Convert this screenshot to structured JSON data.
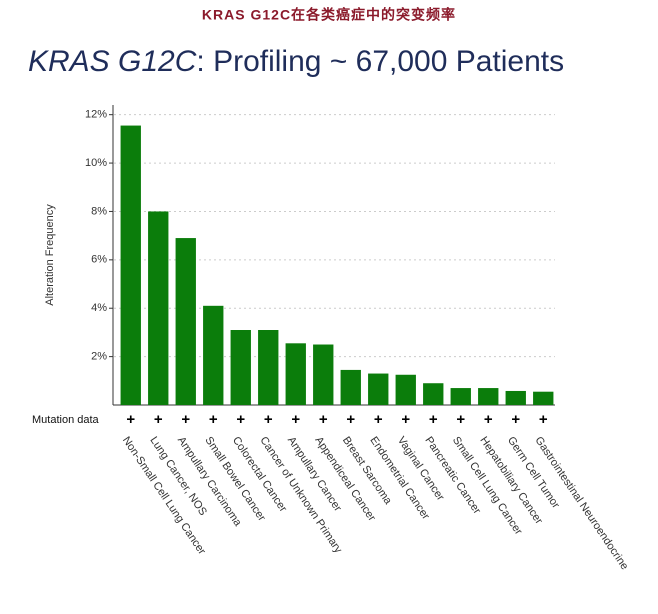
{
  "header": "KRAS G12C在各类癌症中的突变频率",
  "chart_data": {
    "type": "bar",
    "title_italic": "KRAS G12C",
    "title_rest": ": Profiling ~ 67,000 Patients",
    "y_label": "Alteration Frequency",
    "row_label": "Mutation data",
    "row_marker": "+",
    "categories": [
      "Non-Small Cell Lung Cancer",
      "Lung Cancer, NOS",
      "Ampullary Carcinoma",
      "Small Bowel Cancer",
      "Colorectal Cancer",
      "Cancer of Unknown Primary",
      "Ampullary Cancer",
      "Appendiceal Cancer",
      "Breast Sarcoma",
      "Endometrial Cancer",
      "Vaginal Cancer",
      "Pancreatic Cancer",
      "Small Cell Lung Cancer",
      "Hepatobiliary Cancer",
      "Germ Cell Tumor",
      "Gastrointestinal Neuroendocrine"
    ],
    "values": [
      11.55,
      8.0,
      6.9,
      4.1,
      3.1,
      3.1,
      2.55,
      2.5,
      1.45,
      1.3,
      1.25,
      0.9,
      0.7,
      0.7,
      0.58,
      0.55
    ],
    "color": "#0b7d0b",
    "ylim": [
      0,
      12.4
    ],
    "yticks": [
      {
        "value": 2,
        "label": "2%"
      },
      {
        "value": 4,
        "label": "4%"
      },
      {
        "value": 6,
        "label": "6%"
      },
      {
        "value": 8,
        "label": "8%"
      },
      {
        "value": 10,
        "label": "10%"
      },
      {
        "value": 12,
        "label": "12%"
      }
    ],
    "grid": true
  }
}
